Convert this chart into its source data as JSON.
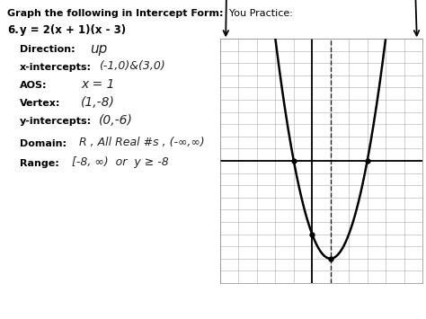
{
  "title_bold": "Graph the following in Intercept Form:",
  "title_you": "  You Practice:",
  "problem_number": "6.",
  "equation": "y = 2(x + 1)(x - 3)",
  "graph": {
    "xmin": -5,
    "xmax": 6,
    "ymin": -10,
    "ymax": 10,
    "grid_color": "#aaaaaa",
    "axis_color": "black",
    "curve_color": "black",
    "aos_x": 1
  },
  "bg_color": "white",
  "text_color": "black",
  "hand_color": "#222222"
}
